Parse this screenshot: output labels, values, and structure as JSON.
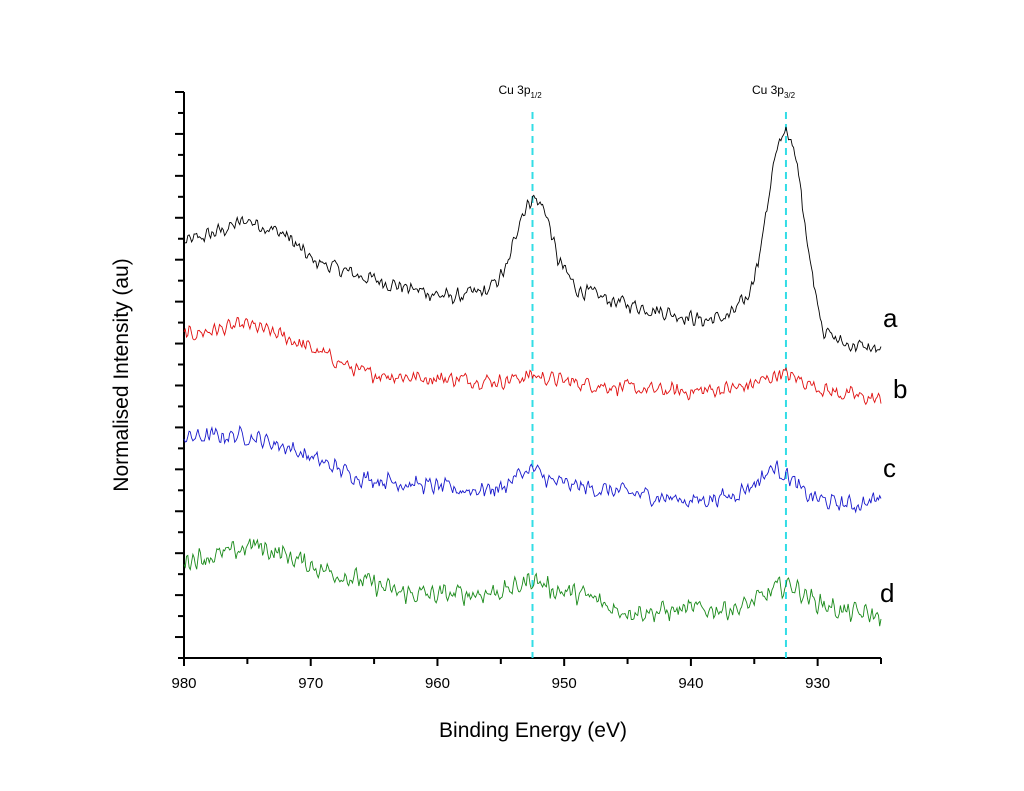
{
  "chart_data": {
    "type": "line",
    "title": "",
    "xlabel": "Binding Energy (eV)",
    "ylabel": "Normalised Intensity (au)",
    "xlim": [
      980,
      925
    ],
    "x_reversed": true,
    "ylim": [
      0,
      27
    ],
    "x_ticks": [
      980,
      970,
      960,
      950,
      940,
      930
    ],
    "x_minor_ticks": [
      975,
      965,
      955,
      945,
      935,
      925
    ],
    "x_tick_labels": [
      "980",
      "970",
      "960",
      "950",
      "940",
      "930"
    ],
    "y_tick_labels_shown": false,
    "grid": false,
    "legend": "none",
    "reference_lines": [
      {
        "label_main": "Cu 3p",
        "label_sub": "1/2",
        "x": 952.5,
        "color": "#33dde6",
        "style": "dashed"
      },
      {
        "label_main": "Cu 3p",
        "label_sub": "3/2",
        "x": 932.5,
        "color": "#33dde6",
        "style": "dashed"
      }
    ],
    "series": [
      {
        "name": "a",
        "color": "#000000",
        "points": [
          [
            980,
            19.8
          ],
          [
            977,
            20.4
          ],
          [
            975,
            20.9
          ],
          [
            972,
            20.2
          ],
          [
            970,
            19.0
          ],
          [
            966,
            18.2
          ],
          [
            962,
            17.6
          ],
          [
            959,
            17.2
          ],
          [
            956,
            17.5
          ],
          [
            954.5,
            18.6
          ],
          [
            953.5,
            21.0
          ],
          [
            952.5,
            22.0
          ],
          [
            951.5,
            21.4
          ],
          [
            950.5,
            19.0
          ],
          [
            949,
            17.6
          ],
          [
            946,
            17.0
          ],
          [
            942,
            16.5
          ],
          [
            939,
            16.1
          ],
          [
            937,
            16.3
          ],
          [
            935.5,
            17.2
          ],
          [
            934.5,
            19.5
          ],
          [
            933.5,
            23.5
          ],
          [
            932.5,
            25.4
          ],
          [
            931.5,
            23.2
          ],
          [
            930.5,
            18.5
          ],
          [
            929.5,
            15.6
          ],
          [
            928,
            15.0
          ],
          [
            926,
            14.8
          ],
          [
            925,
            14.6
          ]
        ]
      },
      {
        "name": "b",
        "color": "#e01010",
        "points": [
          [
            980,
            15.4
          ],
          [
            977,
            15.7
          ],
          [
            975,
            15.9
          ],
          [
            972,
            15.3
          ],
          [
            969,
            14.5
          ],
          [
            966,
            13.6
          ],
          [
            962,
            13.4
          ],
          [
            958,
            13.3
          ],
          [
            955,
            13.2
          ],
          [
            952.5,
            13.5
          ],
          [
            950,
            13.2
          ],
          [
            947,
            13.0
          ],
          [
            944,
            12.8
          ],
          [
            940,
            12.7
          ],
          [
            936,
            12.9
          ],
          [
            934,
            13.3
          ],
          [
            933,
            13.6
          ],
          [
            931.5,
            13.3
          ],
          [
            929,
            12.7
          ],
          [
            927,
            12.5
          ],
          [
            925,
            12.3
          ]
        ]
      },
      {
        "name": "c",
        "color": "#1a1acc",
        "points": [
          [
            980,
            10.5
          ],
          [
            977,
            10.6
          ],
          [
            975,
            10.6
          ],
          [
            972,
            10.1
          ],
          [
            969,
            9.3
          ],
          [
            966,
            8.6
          ],
          [
            962,
            8.3
          ],
          [
            958,
            8.0
          ],
          [
            955,
            8.1
          ],
          [
            953.5,
            8.8
          ],
          [
            952.5,
            9.0
          ],
          [
            951,
            8.4
          ],
          [
            948,
            8.1
          ],
          [
            944,
            7.8
          ],
          [
            940,
            7.5
          ],
          [
            937,
            7.7
          ],
          [
            935,
            8.3
          ],
          [
            933.5,
            9.1
          ],
          [
            932.5,
            8.8
          ],
          [
            931,
            7.8
          ],
          [
            929,
            7.4
          ],
          [
            927,
            7.3
          ],
          [
            925,
            7.6
          ]
        ]
      },
      {
        "name": "d",
        "color": "#1a8a1a",
        "points": [
          [
            980,
            4.7
          ],
          [
            977,
            4.9
          ],
          [
            974.5,
            5.4
          ],
          [
            972,
            4.9
          ],
          [
            969,
            4.2
          ],
          [
            966,
            3.7
          ],
          [
            963,
            3.1
          ],
          [
            960,
            3.0
          ],
          [
            956,
            3.1
          ],
          [
            954,
            3.3
          ],
          [
            952.5,
            3.8
          ],
          [
            951,
            3.3
          ],
          [
            948,
            2.9
          ],
          [
            946,
            2.3
          ],
          [
            943,
            2.2
          ],
          [
            940,
            2.3
          ],
          [
            936,
            2.4
          ],
          [
            934,
            3.0
          ],
          [
            933,
            3.4
          ],
          [
            932,
            3.5
          ],
          [
            930.5,
            2.8
          ],
          [
            928,
            2.2
          ],
          [
            925,
            2.0
          ]
        ]
      }
    ],
    "series_labels": [
      "a",
      "b",
      "c",
      "d"
    ]
  }
}
